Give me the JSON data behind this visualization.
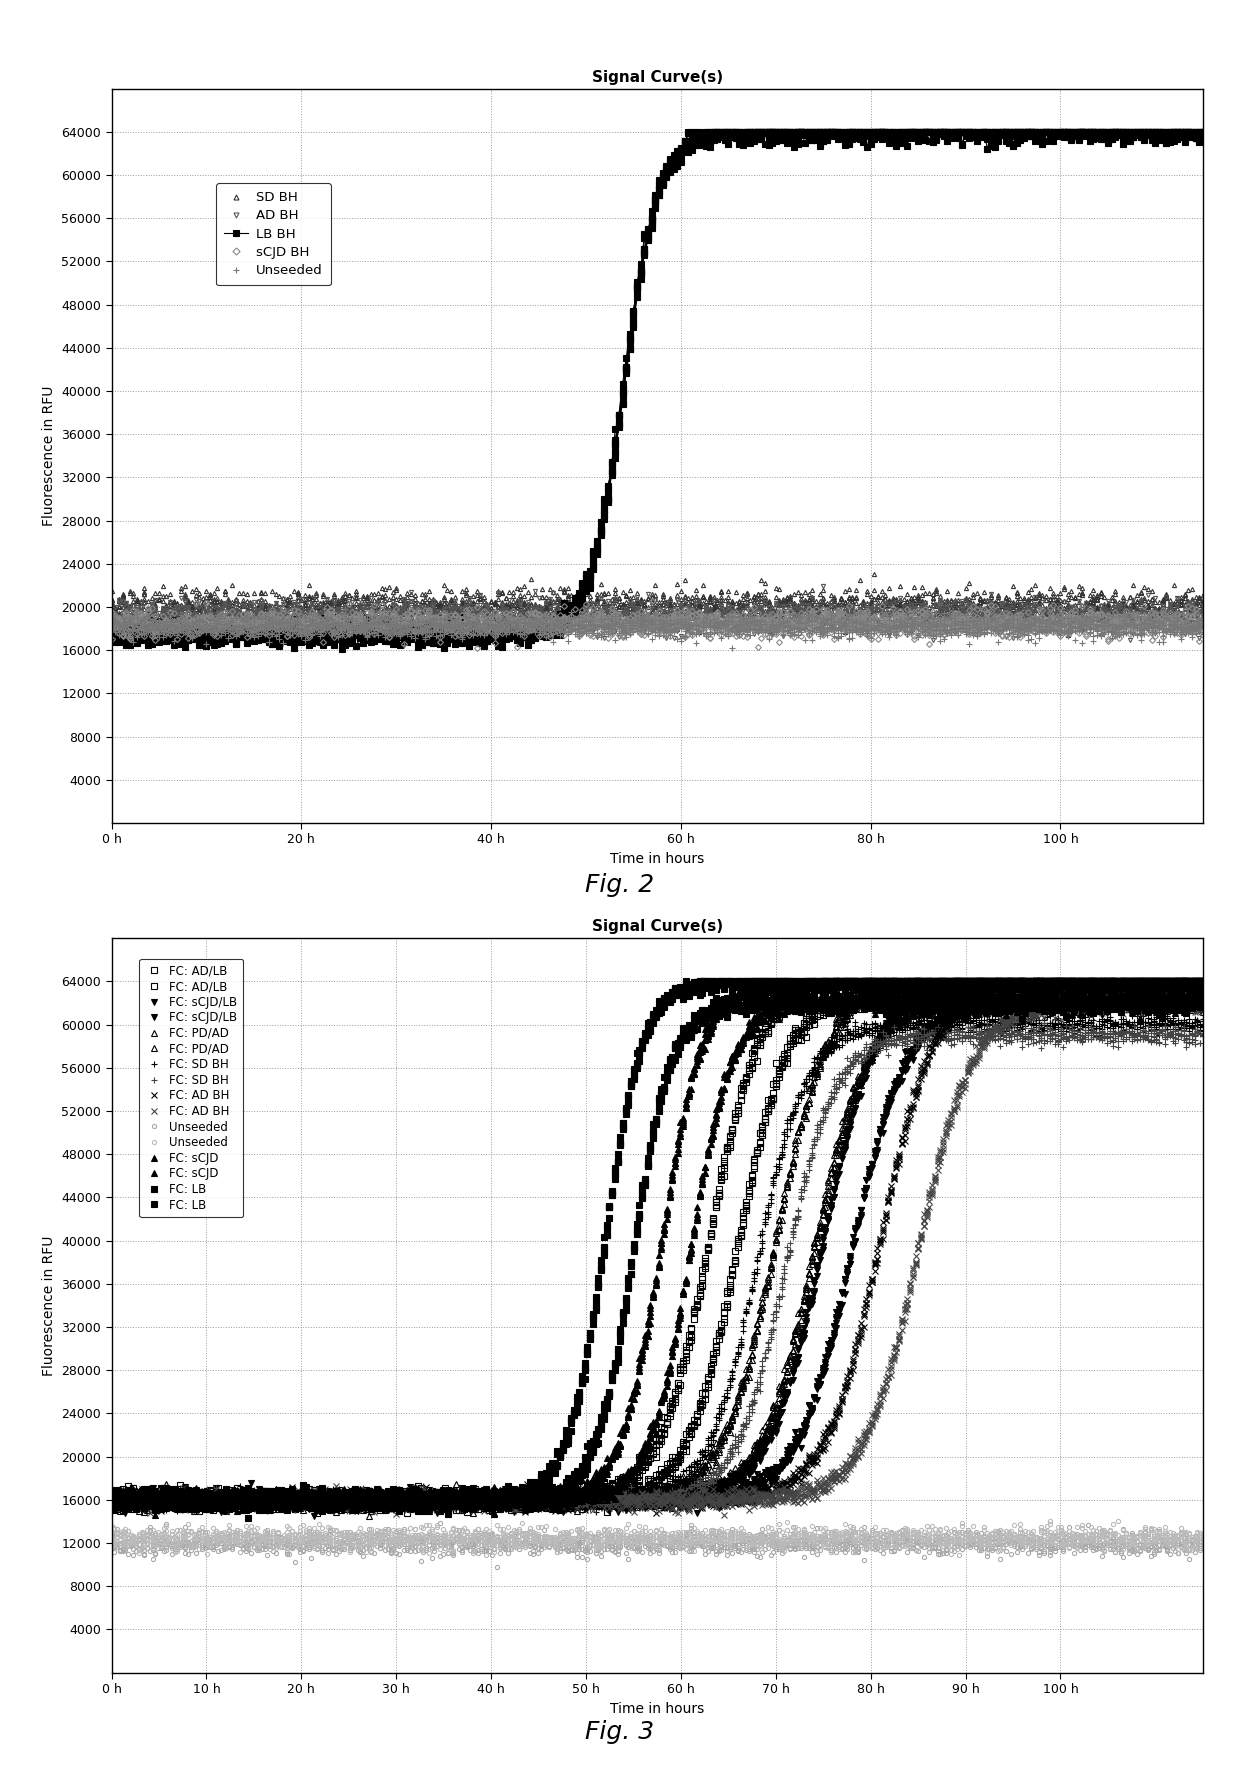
{
  "fig2": {
    "title": "Signal Curve(s)",
    "xlabel": "Time in hours",
    "ylabel": "Fluorescence in RFU",
    "xlim": [
      0,
      115
    ],
    "ylim": [
      0,
      68000
    ],
    "xticks": [
      0,
      20,
      40,
      60,
      80,
      100
    ],
    "xtick_labels": [
      "0 h",
      "20 h",
      "40 h",
      "60 h",
      "80 h",
      "100 h"
    ],
    "yticks": [
      4000,
      8000,
      12000,
      16000,
      20000,
      24000,
      28000,
      32000,
      36000,
      40000,
      44000,
      48000,
      52000,
      56000,
      60000,
      64000
    ],
    "n_replicates": 8,
    "series": [
      {
        "label": "SD BH",
        "marker": "^",
        "color": "#333333",
        "ms": 3,
        "filled": false,
        "baseline": 20000,
        "noise": 800,
        "sigmoid": null
      },
      {
        "label": "AD BH",
        "marker": "v",
        "color": "#555555",
        "ms": 3,
        "filled": false,
        "baseline": 19200,
        "noise": 700,
        "sigmoid": null
      },
      {
        "label": "LB BH",
        "marker": "s",
        "color": "#000000",
        "ms": 4,
        "filled": true,
        "baseline": 17500,
        "noise": 500,
        "sigmoid": {
          "t50": 54,
          "k": 0.55,
          "ymax": 46500,
          "cap": 64000
        }
      },
      {
        "label": "sCJD BH",
        "marker": "D",
        "color": "#888888",
        "ms": 3,
        "filled": false,
        "baseline": 18500,
        "noise": 600,
        "sigmoid": null
      },
      {
        "label": "Unseeded",
        "marker": "+",
        "color": "#777777",
        "ms": 4,
        "filled": false,
        "baseline": 18200,
        "noise": 500,
        "sigmoid": null
      }
    ]
  },
  "fig3": {
    "title": "Signal Curve(s)",
    "xlabel": "Time in hours",
    "ylabel": "Fluorescence in RFU",
    "xlim": [
      0,
      115
    ],
    "ylim": [
      0,
      68000
    ],
    "xticks": [
      0,
      10,
      20,
      30,
      40,
      50,
      60,
      70,
      80,
      90,
      100
    ],
    "xtick_labels": [
      "0 h",
      "10 h",
      "20 h",
      "30 h",
      "40 h",
      "50 h",
      "60 h",
      "70 h",
      "80 h",
      "90 h",
      "100 h"
    ],
    "yticks": [
      4000,
      8000,
      12000,
      16000,
      20000,
      24000,
      28000,
      32000,
      36000,
      40000,
      44000,
      48000,
      52000,
      56000,
      60000,
      64000
    ],
    "n_replicates": 5,
    "series": [
      {
        "label": "FC: AD/LB",
        "marker": "s",
        "color": "#000000",
        "ms": 4,
        "filled": false,
        "baseline": 16000,
        "noise": 400,
        "sigmoid": {
          "t50": 63,
          "k": 0.38,
          "ymax": 48000,
          "cap": 64000
        }
      },
      {
        "label": "FC: AD/LB",
        "marker": "s",
        "color": "#000000",
        "ms": 4,
        "filled": false,
        "baseline": 16000,
        "noise": 400,
        "sigmoid": {
          "t50": 66,
          "k": 0.38,
          "ymax": 47000,
          "cap": 64000
        }
      },
      {
        "label": "FC: sCJD/LB",
        "marker": "v",
        "color": "#000000",
        "ms": 4,
        "filled": true,
        "baseline": 16000,
        "noise": 400,
        "sigmoid": {
          "t50": 75,
          "k": 0.35,
          "ymax": 48000,
          "cap": 64000
        }
      },
      {
        "label": "FC: sCJD/LB",
        "marker": "v",
        "color": "#000000",
        "ms": 4,
        "filled": true,
        "baseline": 16000,
        "noise": 400,
        "sigmoid": {
          "t50": 78,
          "k": 0.35,
          "ymax": 46000,
          "cap": 64000
        }
      },
      {
        "label": "FC: PD/AD",
        "marker": "^",
        "color": "#000000",
        "ms": 4,
        "filled": false,
        "baseline": 16000,
        "noise": 400,
        "sigmoid": {
          "t50": 70,
          "k": 0.36,
          "ymax": 48000,
          "cap": 64000
        }
      },
      {
        "label": "FC: PD/AD",
        "marker": "^",
        "color": "#000000",
        "ms": 4,
        "filled": false,
        "baseline": 16000,
        "noise": 400,
        "sigmoid": {
          "t50": 74,
          "k": 0.36,
          "ymax": 46000,
          "cap": 64000
        }
      },
      {
        "label": "FC: SD BH",
        "marker": "+",
        "color": "#000000",
        "ms": 4,
        "filled": false,
        "baseline": 16000,
        "noise": 400,
        "sigmoid": {
          "t50": 68,
          "k": 0.39,
          "ymax": 44000,
          "cap": 64000
        }
      },
      {
        "label": "FC: SD BH",
        "marker": "+",
        "color": "#444444",
        "ms": 4,
        "filled": false,
        "baseline": 16000,
        "noise": 400,
        "sigmoid": {
          "t50": 71,
          "k": 0.39,
          "ymax": 43000,
          "cap": 64000
        }
      },
      {
        "label": "FC: AD BH",
        "marker": "x",
        "color": "#000000",
        "ms": 4,
        "filled": false,
        "baseline": 16000,
        "noise": 400,
        "sigmoid": {
          "t50": 81,
          "k": 0.35,
          "ymax": 48000,
          "cap": 64000
        }
      },
      {
        "label": "FC: AD BH",
        "marker": "x",
        "color": "#444444",
        "ms": 4,
        "filled": false,
        "baseline": 16000,
        "noise": 400,
        "sigmoid": {
          "t50": 85,
          "k": 0.35,
          "ymax": 46000,
          "cap": 64000
        }
      },
      {
        "label": "Unseeded",
        "marker": "o",
        "color": "#aaaaaa",
        "ms": 3,
        "filled": false,
        "baseline": 12000,
        "noise": 500,
        "sigmoid": null
      },
      {
        "label": "Unseeded",
        "marker": "o",
        "color": "#bbbbbb",
        "ms": 3,
        "filled": false,
        "baseline": 12500,
        "noise": 500,
        "sigmoid": null
      },
      {
        "label": "FC: sCJD",
        "marker": "^",
        "color": "#000000",
        "ms": 4,
        "filled": true,
        "baseline": 16000,
        "noise": 400,
        "sigmoid": {
          "t50": 58,
          "k": 0.46,
          "ymax": 48000,
          "cap": 64000
        }
      },
      {
        "label": "FC: sCJD",
        "marker": "^",
        "color": "#000000",
        "ms": 4,
        "filled": true,
        "baseline": 16000,
        "noise": 400,
        "sigmoid": {
          "t50": 61,
          "k": 0.46,
          "ymax": 46000,
          "cap": 64000
        }
      },
      {
        "label": "FC: LB",
        "marker": "s",
        "color": "#000000",
        "ms": 4,
        "filled": true,
        "baseline": 16000,
        "noise": 400,
        "sigmoid": {
          "t50": 52,
          "k": 0.5,
          "ymax": 48000,
          "cap": 64000
        }
      },
      {
        "label": "FC: LB",
        "marker": "s",
        "color": "#000000",
        "ms": 4,
        "filled": true,
        "baseline": 16000,
        "noise": 400,
        "sigmoid": {
          "t50": 55,
          "k": 0.5,
          "ymax": 46000,
          "cap": 64000
        }
      }
    ]
  }
}
